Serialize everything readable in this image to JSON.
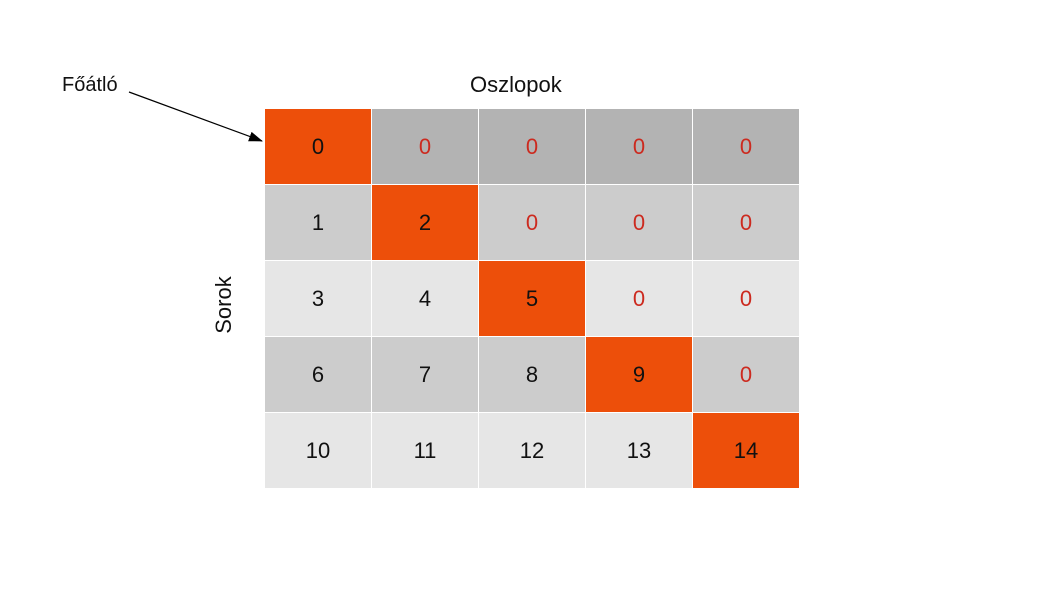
{
  "labels": {
    "columns": "Oszlopok",
    "rows": "Sorok",
    "main_diagonal": "Főátló"
  },
  "matrix": {
    "rows": [
      [
        "0",
        "0",
        "0",
        "0",
        "0"
      ],
      [
        "1",
        "2",
        "0",
        "0",
        "0"
      ],
      [
        "3",
        "4",
        "5",
        "0",
        "0"
      ],
      [
        "6",
        "7",
        "8",
        "9",
        "0"
      ],
      [
        "10",
        "11",
        "12",
        "13",
        "14"
      ]
    ]
  },
  "colors": {
    "diagonal": "#ed4f0a",
    "zero_text": "#cc2a1f",
    "row_shades": [
      "#b3b3b3",
      "#cccccc",
      "#e6e6e6",
      "#cccccc",
      "#e6e6e6"
    ]
  }
}
